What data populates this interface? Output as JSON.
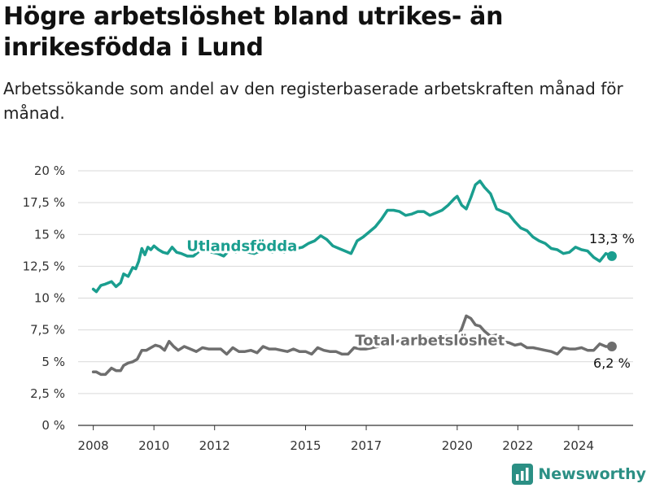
{
  "title": "Högre arbetslöshet bland utrikes- än inrikesfödda i Lund",
  "subtitle": "Arbetssökande som andel av den registerbaserade arbetskraften månad för månad.",
  "brand": {
    "name": "Newsworthy",
    "color": "#2b8f84",
    "icon": "bar-chart-logo-icon"
  },
  "chart_data": {
    "type": "line",
    "ylim": [
      0,
      20
    ],
    "y_ticks": [
      0,
      2.5,
      5,
      7.5,
      10,
      12.5,
      15,
      17.5,
      20
    ],
    "y_tick_labels": [
      "0 %",
      "2,5 %",
      "5 %",
      "7,5 %",
      "10 %",
      "12,5 %",
      "15 %",
      "17,5 %",
      "20 %"
    ],
    "xlim": [
      2007.5,
      2025.8
    ],
    "x_ticks": [
      2008,
      2010,
      2012,
      2015,
      2017,
      2020,
      2022,
      2024
    ],
    "x_tick_labels": [
      "2008",
      "2010",
      "2012",
      "2015",
      "2017",
      "2020",
      "2022",
      "2024"
    ],
    "grid": "horizontal",
    "series": [
      {
        "name": "Utlandsfödda",
        "color": "#1a9e8f",
        "end_label": "13,3 %",
        "x": [
          2008.0,
          2008.1,
          2008.25,
          2008.4,
          2008.6,
          2008.75,
          2008.9,
          2009.0,
          2009.15,
          2009.3,
          2009.4,
          2009.5,
          2009.6,
          2009.7,
          2009.8,
          2009.9,
          2010.0,
          2010.15,
          2010.3,
          2010.45,
          2010.6,
          2010.75,
          2010.9,
          2011.1,
          2011.3,
          2011.5,
          2011.7,
          2011.9,
          2012.1,
          2012.3,
          2012.5,
          2012.7,
          2012.9,
          2013.1,
          2013.3,
          2013.5,
          2013.7,
          2013.9,
          2014.1,
          2014.3,
          2014.5,
          2014.7,
          2014.9,
          2015.1,
          2015.3,
          2015.5,
          2015.7,
          2015.9,
          2016.1,
          2016.3,
          2016.5,
          2016.7,
          2016.9,
          2017.1,
          2017.3,
          2017.5,
          2017.7,
          2017.9,
          2018.1,
          2018.3,
          2018.5,
          2018.7,
          2018.9,
          2019.1,
          2019.3,
          2019.5,
          2019.7,
          2019.9,
          2020.0,
          2020.15,
          2020.3,
          2020.45,
          2020.6,
          2020.75,
          2020.9,
          2021.1,
          2021.3,
          2021.5,
          2021.7,
          2021.9,
          2022.1,
          2022.3,
          2022.5,
          2022.7,
          2022.9,
          2023.1,
          2023.3,
          2023.5,
          2023.7,
          2023.9,
          2024.1,
          2024.3,
          2024.5,
          2024.7,
          2024.9,
          2025.1
        ],
        "y": [
          10.7,
          10.5,
          11.0,
          11.1,
          11.3,
          10.9,
          11.2,
          11.9,
          11.7,
          12.4,
          12.3,
          12.9,
          13.9,
          13.4,
          14.0,
          13.8,
          14.1,
          13.8,
          13.6,
          13.5,
          14.0,
          13.6,
          13.5,
          13.3,
          13.3,
          13.7,
          13.9,
          13.6,
          13.5,
          13.3,
          13.8,
          13.6,
          13.8,
          13.6,
          13.5,
          13.7,
          13.8,
          13.6,
          13.7,
          13.6,
          13.8,
          13.9,
          14.0,
          14.3,
          14.5,
          14.9,
          14.6,
          14.1,
          13.9,
          13.7,
          13.5,
          14.5,
          14.8,
          15.2,
          15.6,
          16.2,
          16.9,
          16.9,
          16.8,
          16.5,
          16.6,
          16.8,
          16.8,
          16.5,
          16.7,
          16.9,
          17.3,
          17.8,
          18.0,
          17.3,
          17.0,
          17.9,
          18.9,
          19.2,
          18.7,
          18.2,
          17.0,
          16.8,
          16.6,
          16.0,
          15.5,
          15.3,
          14.8,
          14.5,
          14.3,
          13.9,
          13.8,
          13.5,
          13.6,
          14.0,
          13.8,
          13.7,
          13.2,
          12.9,
          13.5,
          13.3
        ]
      },
      {
        "name": "Total arbetslöshet",
        "color": "#6e6e6e",
        "end_label": "6,2 %",
        "x": [
          2008.0,
          2008.1,
          2008.25,
          2008.4,
          2008.6,
          2008.75,
          2008.9,
          2009.0,
          2009.15,
          2009.3,
          2009.45,
          2009.6,
          2009.75,
          2009.9,
          2010.05,
          2010.2,
          2010.35,
          2010.5,
          2010.65,
          2010.8,
          2011.0,
          2011.2,
          2011.4,
          2011.6,
          2011.8,
          2012.0,
          2012.2,
          2012.4,
          2012.6,
          2012.8,
          2013.0,
          2013.2,
          2013.4,
          2013.6,
          2013.8,
          2014.0,
          2014.2,
          2014.4,
          2014.6,
          2014.8,
          2015.0,
          2015.2,
          2015.4,
          2015.6,
          2015.8,
          2016.0,
          2016.2,
          2016.4,
          2016.6,
          2016.8,
          2017.0,
          2017.2,
          2017.4,
          2017.6,
          2017.8,
          2018.0,
          2018.2,
          2018.4,
          2018.6,
          2018.8,
          2019.0,
          2019.2,
          2019.4,
          2019.6,
          2019.8,
          2020.0,
          2020.15,
          2020.3,
          2020.45,
          2020.6,
          2020.75,
          2020.9,
          2021.1,
          2021.3,
          2021.5,
          2021.7,
          2021.9,
          2022.1,
          2022.3,
          2022.5,
          2022.7,
          2022.9,
          2023.1,
          2023.3,
          2023.5,
          2023.7,
          2023.9,
          2024.1,
          2024.3,
          2024.5,
          2024.7,
          2024.9,
          2025.1
        ],
        "y": [
          4.2,
          4.2,
          4.0,
          4.0,
          4.5,
          4.3,
          4.3,
          4.7,
          4.9,
          5.0,
          5.2,
          5.9,
          5.9,
          6.1,
          6.3,
          6.2,
          5.9,
          6.6,
          6.2,
          5.9,
          6.2,
          6.0,
          5.8,
          6.1,
          6.0,
          6.0,
          6.0,
          5.6,
          6.1,
          5.8,
          5.8,
          5.9,
          5.7,
          6.2,
          6.0,
          6.0,
          5.9,
          5.8,
          6.0,
          5.8,
          5.8,
          5.6,
          6.1,
          5.9,
          5.8,
          5.8,
          5.6,
          5.6,
          6.1,
          6.0,
          6.0,
          6.1,
          6.2,
          6.4,
          6.5,
          6.6,
          6.7,
          6.7,
          6.8,
          6.8,
          6.9,
          6.9,
          6.9,
          7.0,
          7.0,
          6.9,
          7.6,
          8.6,
          8.4,
          7.9,
          7.8,
          7.4,
          7.0,
          7.1,
          6.6,
          6.5,
          6.3,
          6.4,
          6.1,
          6.1,
          6.0,
          5.9,
          5.8,
          5.6,
          6.1,
          6.0,
          6.0,
          6.1,
          5.9,
          5.9,
          6.4,
          6.2,
          6.2
        ]
      }
    ]
  }
}
